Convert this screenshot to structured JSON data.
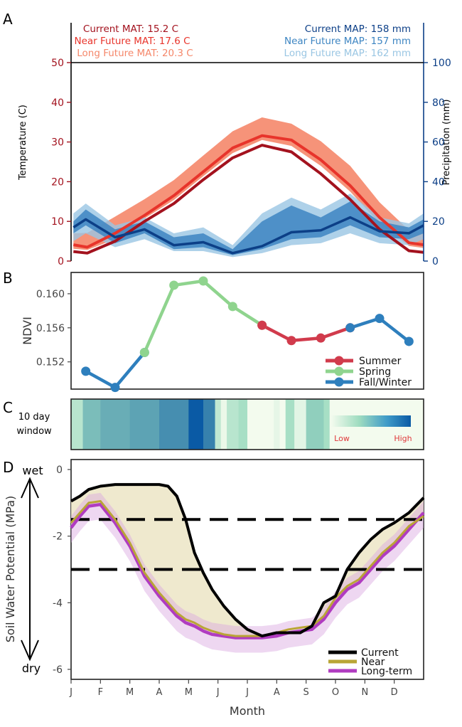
{
  "months": [
    "J",
    "F",
    "M",
    "A",
    "M",
    "J",
    "J",
    "A",
    "S",
    "O",
    "N",
    "D"
  ],
  "xlabel": "Month",
  "colors": {
    "current_temp": "#a3121e",
    "near_temp": "#e8342b",
    "long_temp": "#f5876a",
    "current_precip": "#0c3f87",
    "near_precip": "#3d85c2",
    "long_precip": "#9ac6e3",
    "summer": "#d13b4c",
    "spring": "#8fd48e",
    "fallwinter": "#2e7fbd",
    "soil_current": "#000000",
    "soil_near": "#b9a536",
    "soil_long": "#b03cc0"
  },
  "chart_data": [
    {
      "panel": "A",
      "type": "line",
      "ylabel": "Temperature (C)",
      "ylabel_right": "Precipitation (mm)",
      "ylim": [
        0,
        50
      ],
      "ylim_right": [
        0,
        100
      ],
      "yticks": [
        "0",
        "10",
        "20",
        "30",
        "40",
        "50"
      ],
      "yticks_right": [
        "0",
        "20",
        "40",
        "60",
        "80",
        "100"
      ],
      "legend_temp": [
        "Current MAT: 15.2 C",
        "Near Future MAT: 17.6 C",
        "Long Future MAT: 20.3 C"
      ],
      "legend_precip": [
        "Current MAP: 158 mm",
        "Near Future MAP: 157 mm",
        "Long Future MAP: 162 mm"
      ],
      "x": [
        0.08,
        0.55,
        1.5,
        2.5,
        3.5,
        4.5,
        5.5,
        6.5,
        7.5,
        8.5,
        9.5,
        10.5,
        11.5,
        12.0
      ],
      "temperature_series": [
        {
          "name": "Current",
          "values": [
            2.4,
            2.0,
            5.0,
            10.0,
            14.5,
            20.5,
            26.0,
            29.2,
            27.5,
            22.0,
            15.5,
            8.0,
            2.6,
            2.2
          ]
        },
        {
          "name": "Near Future",
          "values": [
            4.1,
            3.5,
            7.0,
            11.5,
            16.5,
            22.5,
            28.5,
            31.6,
            30.5,
            25.5,
            19.0,
            11.0,
            4.6,
            4.1
          ]
        },
        {
          "name": "Long Future",
          "values": [
            6.1,
            6.0,
            9.5,
            14.2,
            19.3,
            25.5,
            31.0,
            34.5,
            33.0,
            29.0,
            23.0,
            14.0,
            6.9,
            6.0
          ]
        }
      ],
      "temperature_band": {
        "low": [
          3.1,
          2.8,
          5.5,
          10.7,
          15.4,
          21.4,
          27.2,
          30.5,
          29.0,
          24.0,
          17.5,
          9.5,
          3.8,
          3.3
        ],
        "high": [
          7.0,
          7.1,
          11.2,
          15.6,
          20.4,
          26.6,
          32.7,
          36.2,
          34.6,
          30.2,
          24.0,
          14.8,
          7.8,
          7.0
        ]
      },
      "precip_x": [
        0.08,
        0.5,
        1.5,
        2.5,
        3.5,
        4.5,
        5.5,
        6.5,
        7.5,
        8.5,
        9.5,
        10.5,
        11.5,
        12.0
      ],
      "precip_current": [
        17,
        21,
        12,
        16,
        8,
        9.5,
        4,
        7.5,
        14.5,
        15.5,
        22,
        15,
        14,
        18
      ],
      "precip_band_near": {
        "low": [
          14,
          18,
          9,
          14,
          6,
          7,
          3,
          6,
          11,
          12,
          18,
          12,
          11,
          14
        ],
        "high": [
          20,
          26,
          16,
          20,
          12,
          14,
          6,
          20,
          28,
          22,
          30,
          20,
          17,
          21
        ]
      },
      "precip_band_long": {
        "low": [
          10,
          14,
          7,
          11,
          5,
          5,
          2,
          4,
          8,
          9,
          14,
          9,
          8,
          11
        ],
        "high": [
          24,
          29,
          18,
          22,
          14,
          17,
          8,
          24,
          32,
          26,
          34,
          22,
          19,
          24
        ]
      }
    },
    {
      "panel": "B",
      "type": "line",
      "ylabel": "NDVI",
      "yticks": [
        "0.152",
        "0.156",
        "0.160"
      ],
      "ylim": [
        0.1488,
        0.1625
      ],
      "legend": [
        "Summer",
        "Spring",
        "Fall/Winter"
      ],
      "segments": [
        {
          "name": "Fall/Winter",
          "x": [
            0.5,
            1.5,
            2.5
          ],
          "values": [
            0.1509,
            0.149,
            0.1531
          ]
        },
        {
          "name": "Spring",
          "x": [
            2.5,
            3.5,
            4.5,
            5.5,
            6.5
          ],
          "values": [
            0.1531,
            0.161,
            0.1615,
            0.1585,
            0.1563
          ]
        },
        {
          "name": "Summer",
          "x": [
            6.5,
            7.5,
            8.5,
            9.5
          ],
          "values": [
            0.1563,
            0.1545,
            0.1548,
            0.156
          ]
        },
        {
          "name": "Fall/Winter",
          "x": [
            9.5,
            10.5,
            11.5
          ],
          "values": [
            0.156,
            0.1571,
            0.1544
          ]
        }
      ]
    },
    {
      "panel": "C",
      "type": "heatmap",
      "ylabel_line1": "10 day",
      "ylabel_line2": "window",
      "legend_low": "Low",
      "legend_high": "High",
      "x_start": [
        0.0,
        0.4,
        1.0,
        2.0,
        3.0,
        4.0,
        4.5,
        4.9,
        5.1,
        5.3,
        5.7,
        6.0,
        6.9,
        7.1,
        7.3,
        7.6,
        8.0,
        8.6,
        8.8,
        9.0,
        10.5,
        12.0
      ],
      "intensity": [
        0.35,
        0.62,
        0.68,
        0.72,
        0.8,
        1.0,
        0.85,
        0.3,
        0.05,
        0.35,
        0.45,
        0.0,
        0.08,
        0.0,
        0.45,
        0.1,
        0.55,
        0.45,
        0.0,
        0.0,
        0.0,
        0.15
      ]
    },
    {
      "panel": "D",
      "type": "line",
      "ylabel": "Soil Water Potential (MPa)",
      "wet_label": "wet",
      "dry_label": "dry",
      "ylim": [
        -6.3,
        0.3
      ],
      "yticks": [
        "0",
        "-2",
        "-4",
        "-6"
      ],
      "thresholds": [
        -1.5,
        -3.0
      ],
      "legend": [
        "Current",
        "Near",
        "Long-term"
      ],
      "x": [
        0.0,
        0.3,
        0.6,
        1.0,
        1.5,
        2.0,
        2.5,
        3.0,
        3.3,
        3.6,
        3.9,
        4.2,
        4.5,
        4.8,
        5.2,
        5.6,
        6.0,
        6.5,
        7.0,
        7.4,
        7.8,
        8.2,
        8.6,
        9.0,
        9.4,
        9.8,
        10.2,
        10.6,
        11.0,
        11.5,
        12.0
      ],
      "current": [
        -0.95,
        -0.8,
        -0.6,
        -0.5,
        -0.45,
        -0.45,
        -0.45,
        -0.45,
        -0.5,
        -0.8,
        -1.5,
        -2.5,
        -3.1,
        -3.6,
        -4.1,
        -4.5,
        -4.8,
        -5.0,
        -4.9,
        -4.9,
        -4.9,
        -4.7,
        -4.0,
        -3.8,
        -3.0,
        -2.5,
        -2.1,
        -1.8,
        -1.6,
        -1.3,
        -0.85
      ],
      "near": [
        -1.6,
        -1.3,
        -1.0,
        -0.95,
        -1.5,
        -2.2,
        -3.1,
        -3.7,
        -4.0,
        -4.3,
        -4.5,
        -4.6,
        -4.75,
        -4.85,
        -4.95,
        -5.0,
        -5.0,
        -5.0,
        -4.9,
        -4.8,
        -4.75,
        -4.7,
        -4.4,
        -3.85,
        -3.5,
        -3.3,
        -2.9,
        -2.5,
        -2.2,
        -1.7,
        -1.4
      ],
      "long": [
        -1.75,
        -1.4,
        -1.1,
        -1.05,
        -1.6,
        -2.3,
        -3.2,
        -3.8,
        -4.1,
        -4.4,
        -4.6,
        -4.7,
        -4.85,
        -4.95,
        -5.0,
        -5.05,
        -5.05,
        -5.05,
        -5.0,
        -4.9,
        -4.85,
        -4.8,
        -4.5,
        -4.0,
        -3.6,
        -3.4,
        -3.0,
        -2.6,
        -2.3,
        -1.8,
        -1.3
      ]
    }
  ]
}
